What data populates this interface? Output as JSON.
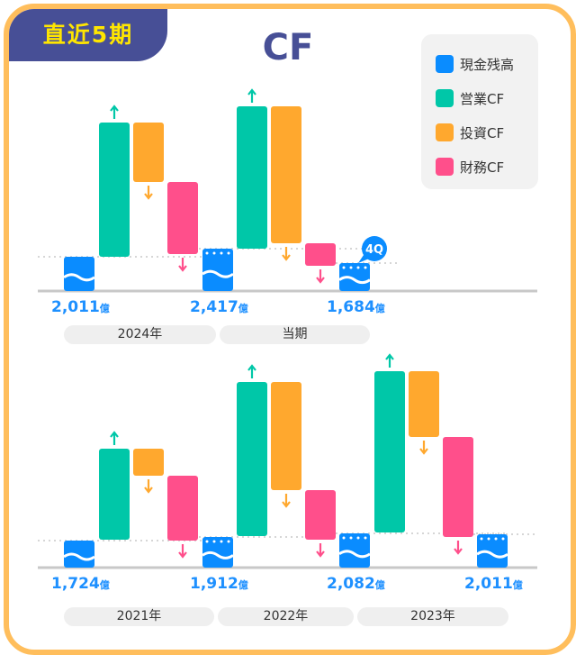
{
  "badge": "直近5期",
  "title": "CF",
  "legend": [
    {
      "label": "現金残高",
      "color": "#0a8cff"
    },
    {
      "label": "営業CF",
      "color": "#00c7a8"
    },
    {
      "label": "投資CF",
      "color": "#ffa82e"
    },
    {
      "label": "財務CF",
      "color": "#ff4f8b"
    }
  ],
  "unit": "億",
  "quarter_badge": "4Q",
  "chart_data": [
    {
      "type": "waterfall",
      "periods": [
        "2024年",
        "当期"
      ],
      "cash_balances": [
        "2,011",
        "2,417",
        "1,684"
      ],
      "cf_direction": {
        "operating": "up",
        "investing": "down",
        "financing": "down"
      }
    },
    {
      "type": "waterfall",
      "periods": [
        "2021年",
        "2022年",
        "2023年"
      ],
      "cash_balances": [
        "1,724",
        "1,912",
        "2,082",
        "2,011"
      ],
      "cf_direction": {
        "operating": "up",
        "investing": "down",
        "financing": "down"
      }
    }
  ]
}
